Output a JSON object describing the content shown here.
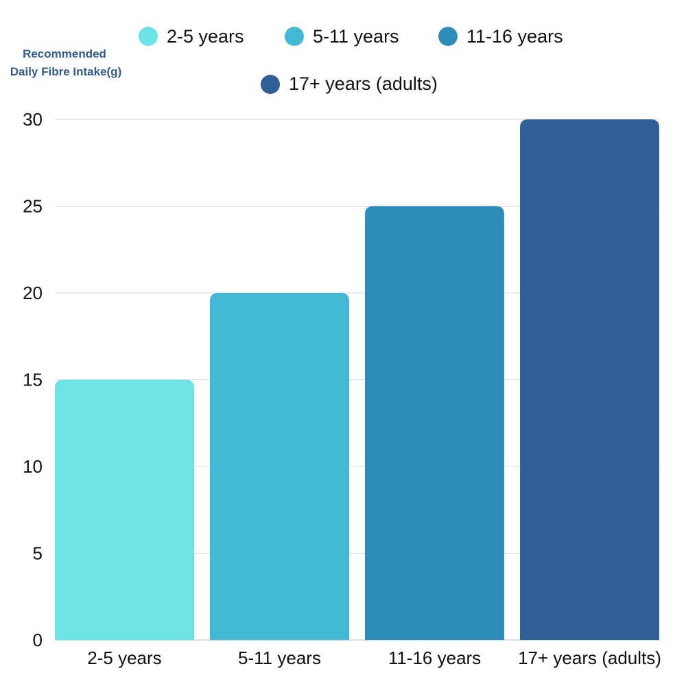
{
  "chart_data": {
    "type": "bar",
    "title": "",
    "xlabel": "",
    "ylabel_lines": [
      "Recommended",
      "Daily Fibre Intake(g)"
    ],
    "categories": [
      "2-5 years",
      "5-11 years",
      "11-16 years",
      "17+ years (adults)"
    ],
    "values": [
      15,
      20,
      25,
      30
    ],
    "colors": [
      "#6ce4e7",
      "#43b8d5",
      "#2e8cba",
      "#2f5f97"
    ],
    "ylim": [
      0,
      30
    ],
    "yticks": [
      0,
      5,
      10,
      15,
      20,
      25,
      30
    ],
    "grid": true,
    "legend_position": "top",
    "legend": [
      {
        "label": "2-5 years",
        "color": "#6ce4e7"
      },
      {
        "label": "5-11 years",
        "color": "#43b8d5"
      },
      {
        "label": "11-16 years",
        "color": "#2e8cba"
      },
      {
        "label": "17+ years (adults)",
        "color": "#2f5f97"
      }
    ]
  }
}
